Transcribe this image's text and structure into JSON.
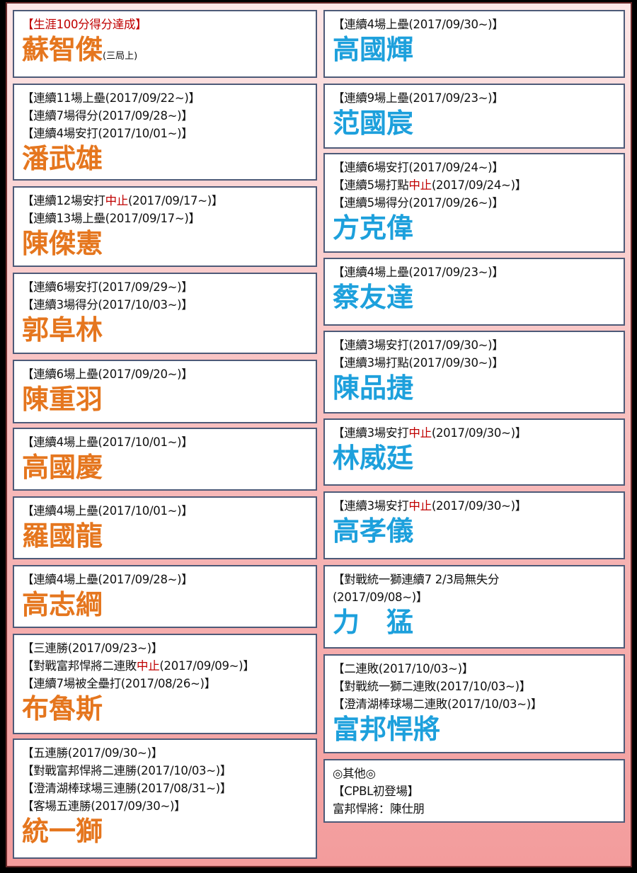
{
  "colors": {
    "left_name": "#e5761e",
    "right_name": "#1da0dc",
    "highlight": "#c00000"
  },
  "left": [
    {
      "lines": [
        [
          {
            "t": "【生涯100分得分達成】",
            "red": true
          }
        ]
      ],
      "name": "蘇智傑",
      "note": "(三局上)"
    },
    {
      "lines": [
        [
          {
            "t": "【連續11場上壘(2017/09/22~)】"
          }
        ],
        [
          {
            "t": "【連續7場得分(2017/09/28~)】"
          }
        ],
        [
          {
            "t": "【連續4場安打(2017/10/01~)】"
          }
        ]
      ],
      "name": "潘武雄"
    },
    {
      "lines": [
        [
          {
            "t": "【連續12場安打"
          },
          {
            "t": "中止",
            "red": true
          },
          {
            "t": "(2017/09/17~)】"
          }
        ],
        [
          {
            "t": "【連續13場上壘(2017/09/17~)】"
          }
        ]
      ],
      "name": "陳傑憲"
    },
    {
      "lines": [
        [
          {
            "t": "【連續6場安打(2017/09/29~)】"
          }
        ],
        [
          {
            "t": "【連續3場得分(2017/10/03~)】"
          }
        ]
      ],
      "name": "郭阜林"
    },
    {
      "lines": [
        [
          {
            "t": "【連續6場上壘(2017/09/20~)】"
          }
        ]
      ],
      "name": "陳重羽"
    },
    {
      "lines": [
        [
          {
            "t": "【連續4場上壘(2017/10/01~)】"
          }
        ]
      ],
      "name": "高國慶"
    },
    {
      "lines": [
        [
          {
            "t": "【連續4場上壘(2017/10/01~)】"
          }
        ]
      ],
      "name": "羅國龍"
    },
    {
      "lines": [
        [
          {
            "t": "【連續4場上壘(2017/09/28~)】"
          }
        ]
      ],
      "name": "高志綱"
    },
    {
      "lines": [
        [
          {
            "t": "【三連勝(2017/09/23~)】"
          }
        ],
        [
          {
            "t": "【對戰富邦悍將二連敗"
          },
          {
            "t": "中止",
            "red": true
          },
          {
            "t": "(2017/09/09~)】"
          }
        ],
        [
          {
            "t": "【連續7場被全壘打(2017/08/26~)】"
          }
        ]
      ],
      "name": "布魯斯"
    },
    {
      "lines": [
        [
          {
            "t": "【五連勝(2017/09/30~)】"
          }
        ],
        [
          {
            "t": "【對戰富邦悍將二連勝(2017/10/03~)】"
          }
        ],
        [
          {
            "t": "【澄清湖棒球場三連勝(2017/08/31~)】"
          }
        ],
        [
          {
            "t": "【客場五連勝(2017/09/30~)】"
          }
        ]
      ],
      "name": "統一獅"
    }
  ],
  "right": [
    {
      "lines": [
        [
          {
            "t": "【連續4場上壘(2017/09/30~)】"
          }
        ]
      ],
      "name": "高國輝"
    },
    {
      "lines": [
        [
          {
            "t": "【連續9場上壘(2017/09/23~)】"
          }
        ]
      ],
      "name": "范國宸"
    },
    {
      "lines": [
        [
          {
            "t": "【連續6場安打(2017/09/24~)】"
          }
        ],
        [
          {
            "t": "【連續5場打點"
          },
          {
            "t": "中止",
            "red": true
          },
          {
            "t": "(2017/09/24~)】"
          }
        ],
        [
          {
            "t": "【連續5場得分(2017/09/26~)】"
          }
        ]
      ],
      "name": "方克偉"
    },
    {
      "lines": [
        [
          {
            "t": "【連續4場上壘(2017/09/23~)】"
          }
        ]
      ],
      "name": "蔡友達"
    },
    {
      "lines": [
        [
          {
            "t": "【連續3場安打(2017/09/30~)】"
          }
        ],
        [
          {
            "t": "【連續3場打點(2017/09/30~)】"
          }
        ]
      ],
      "name": "陳品捷"
    },
    {
      "lines": [
        [
          {
            "t": "【連續3場安打"
          },
          {
            "t": "中止",
            "red": true
          },
          {
            "t": "(2017/09/30~)】"
          }
        ]
      ],
      "name": "林威廷"
    },
    {
      "lines": [
        [
          {
            "t": "【連續3場安打"
          },
          {
            "t": "中止",
            "red": true
          },
          {
            "t": "(2017/09/30~)】"
          }
        ]
      ],
      "name": "高孝儀"
    },
    {
      "lines": [
        [
          {
            "t": "【對戰統一獅連續7 2/3局無失分"
          }
        ],
        [
          {
            "t": "(2017/09/08~)】"
          }
        ]
      ],
      "name": "力　猛"
    },
    {
      "lines": [
        [
          {
            "t": "【二連敗(2017/10/03~)】"
          }
        ],
        [
          {
            "t": "【對戰統一獅二連敗(2017/10/03~)】"
          }
        ],
        [
          {
            "t": "【澄清湖棒球場二連敗(2017/10/03~)】"
          }
        ]
      ],
      "name": "富邦悍將"
    },
    {
      "lines": [
        [
          {
            "t": "◎其他◎"
          }
        ],
        [
          {
            "t": "【CPBL初登場】"
          }
        ],
        [
          {
            "t": "富邦悍將：陳仕朋"
          }
        ]
      ]
    }
  ]
}
